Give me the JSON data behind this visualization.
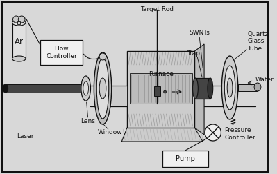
{
  "bg_color": "#d8d8d8",
  "border_color": "#222222",
  "labels": {
    "target_rod": "Target Rod",
    "swnts": "SWNTs",
    "quartz_glass_tube": "Quartz\nGlass\nTube",
    "trap": "Trap",
    "water": "Water",
    "furnace": "Furnace",
    "lens": "Lens",
    "laser": "Laser",
    "window": "Window",
    "ar": "Ar",
    "flow_controller": "Flow\nController",
    "pressure_controller": "Pressure\nController",
    "pump": "Pump"
  },
  "font_size": 6.5,
  "lc": "#111111",
  "white": "#ffffff",
  "light": "#cccccc",
  "mid": "#999999",
  "dark": "#444444",
  "vdark": "#111111"
}
